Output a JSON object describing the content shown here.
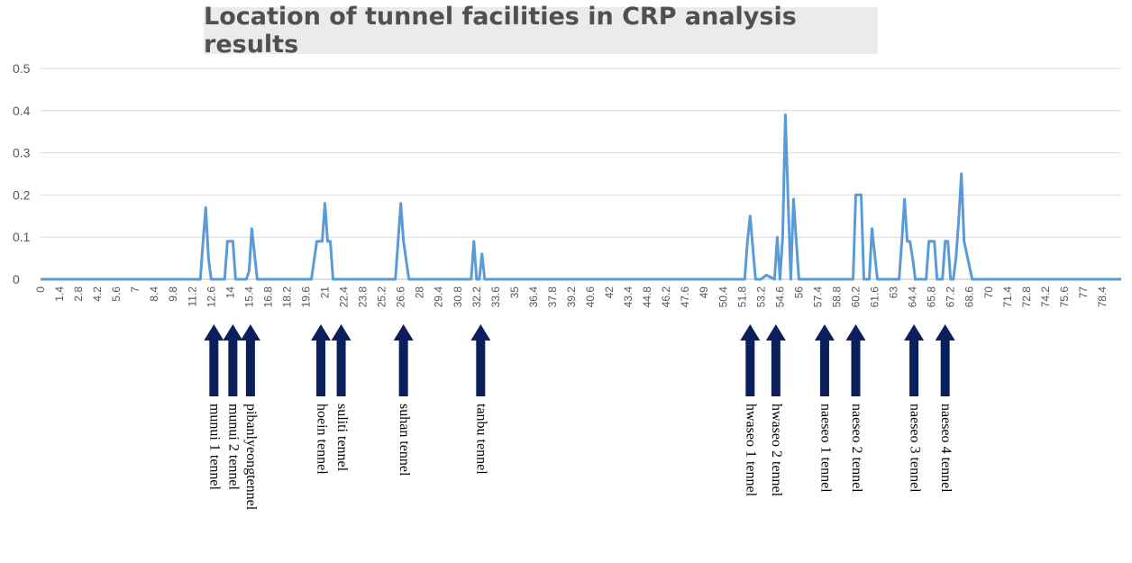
{
  "chart_data": {
    "type": "line",
    "title": "Location of tunnel facilities in CRP analysis results",
    "xlabel": "",
    "ylabel": "",
    "ylim": [
      0,
      0.5
    ],
    "yticks": [
      "0",
      "0.1",
      "0.2",
      "0.3",
      "0.4",
      "0.5"
    ],
    "xlim": [
      0,
      79.8
    ],
    "xticks": [
      "0",
      "1.4",
      "2.8",
      "4.2",
      "5.6",
      "7",
      "8.4",
      "9.8",
      "11.2",
      "12.6",
      "14",
      "15.4",
      "16.8",
      "18.2",
      "19.6",
      "21",
      "22.4",
      "23.8",
      "25.2",
      "26.6",
      "28",
      "29.4",
      "30.8",
      "32.2",
      "33.6",
      "35",
      "36.4",
      "37.8",
      "39.2",
      "40.6",
      "42",
      "43.4",
      "44.8",
      "46.2",
      "47.6",
      "49",
      "50.4",
      "51.8",
      "53.2",
      "54.6",
      "56",
      "57.4",
      "58.8",
      "60.2",
      "61.6",
      "63",
      "64.4",
      "65.8",
      "67.2",
      "68.6",
      "70",
      "71.4",
      "72.8",
      "74.2",
      "75.6",
      "77",
      "78.4"
    ],
    "grid": true,
    "line_color": "#5b9bd5",
    "series": [
      {
        "x": [
          0,
          11.8,
          12.0,
          12.2,
          12.4,
          12.6,
          13.0,
          13.6,
          13.8,
          14.0,
          14.2,
          14.4,
          14.8,
          15.2,
          15.4,
          15.6,
          16.0,
          20.0,
          20.4,
          20.6,
          20.8,
          21.0,
          21.2,
          21.4,
          21.6,
          26.2,
          26.4,
          26.6,
          26.8,
          27.2,
          31.8,
          32.0,
          32.2,
          32.4,
          32.6,
          32.8,
          52.0,
          52.2,
          52.4,
          52.8,
          53.0,
          53.2,
          53.6,
          54.2,
          54.4,
          54.6,
          54.8,
          55.0,
          55.2,
          55.4,
          55.6,
          56.0,
          56.4,
          56.6,
          56.8,
          57.0,
          57.2,
          57.4,
          57.8,
          60.0,
          60.2,
          60.4,
          60.6,
          60.8,
          61.0,
          61.2,
          61.4,
          61.8,
          63.4,
          63.6,
          63.8,
          64.0,
          64.2,
          64.4,
          64.6,
          64.8,
          65.4,
          65.6,
          65.8,
          66.0,
          66.2,
          66.6,
          66.8,
          67.0,
          67.2,
          67.4,
          67.6,
          67.8,
          68.0,
          68.2,
          68.8,
          79.8
        ],
        "y": [
          0,
          0,
          0.09,
          0.17,
          0.05,
          0,
          0,
          0,
          0.09,
          0.09,
          0.09,
          0,
          0,
          0,
          0.02,
          0.12,
          0,
          0,
          0.09,
          0.09,
          0.09,
          0.18,
          0.09,
          0.09,
          0,
          0,
          0.09,
          0.18,
          0.09,
          0,
          0,
          0.09,
          0,
          0,
          0.06,
          0,
          0,
          0.09,
          0.15,
          0,
          0,
          0,
          0.01,
          0,
          0.1,
          0,
          0.1,
          0.39,
          0.19,
          0,
          0.19,
          0,
          0,
          0,
          0,
          0,
          0,
          0,
          0,
          0,
          0.2,
          0.2,
          0.2,
          0,
          0,
          0,
          0.12,
          0,
          0,
          0.09,
          0.19,
          0.09,
          0.09,
          0.05,
          0,
          0,
          0,
          0.09,
          0.09,
          0.09,
          0,
          0,
          0.09,
          0.09,
          0,
          0,
          0.05,
          0.14,
          0.25,
          0.09,
          0,
          0
        ]
      }
    ],
    "annotations": [
      {
        "label": "munui 1 tennel",
        "x": 12.8
      },
      {
        "label": "munui 2 tennel",
        "x": 14.2
      },
      {
        "label": "pibanlyeongtennel",
        "x": 15.5
      },
      {
        "label": "hoein tennel",
        "x": 20.7
      },
      {
        "label": "suliti tennel",
        "x": 22.2
      },
      {
        "label": "suhan tennel",
        "x": 26.8
      },
      {
        "label": "tanbu tennel",
        "x": 32.5
      },
      {
        "label": "hwaseo 1 tennel",
        "x": 52.4
      },
      {
        "label": "hwaseo 2 tennel",
        "x": 54.3
      },
      {
        "label": "naeseo 1 tennel",
        "x": 57.9
      },
      {
        "label": "naeseo 2 tennel",
        "x": 60.2
      },
      {
        "label": "naeseo 3 tennel",
        "x": 64.5
      },
      {
        "label": "naeseo 4 tennel",
        "x": 66.8
      }
    ]
  }
}
